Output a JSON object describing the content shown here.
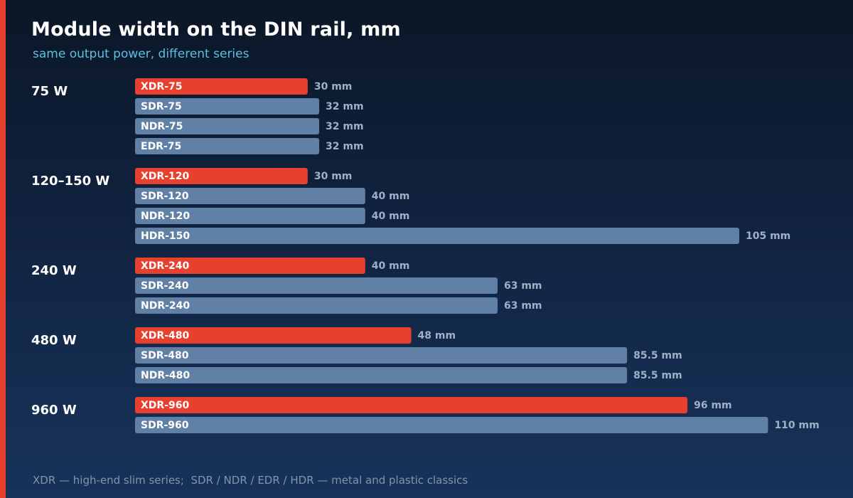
{
  "chart_data": {
    "type": "bar",
    "orientation": "horizontal",
    "title": "Module width on the DIN rail, mm",
    "subtitle": "same output power, different series",
    "footnote": "XDR — high-end slim series;  SDR / NDR / EDR / HDR — metal and plastic classics",
    "unit": "mm",
    "highlight_series": "XDR",
    "colors": {
      "highlight": "#e8402f",
      "standard": "#6180a6",
      "value_text": "#9fb0c7",
      "subtitle": "#5cc0e0"
    },
    "groups": [
      {
        "label": "75 W",
        "bars": [
          {
            "name": "XDR-75",
            "value": 30,
            "value_label": "30 mm",
            "highlight": true
          },
          {
            "name": "SDR-75",
            "value": 32,
            "value_label": "32 mm",
            "highlight": false
          },
          {
            "name": "NDR-75",
            "value": 32,
            "value_label": "32 mm",
            "highlight": false
          },
          {
            "name": "EDR-75",
            "value": 32,
            "value_label": "32 mm",
            "highlight": false
          }
        ]
      },
      {
        "label": "120–150 W",
        "bars": [
          {
            "name": "XDR-120",
            "value": 30,
            "value_label": "30 mm",
            "highlight": true
          },
          {
            "name": "SDR-120",
            "value": 40,
            "value_label": "40 mm",
            "highlight": false
          },
          {
            "name": "NDR-120",
            "value": 40,
            "value_label": "40 mm",
            "highlight": false
          },
          {
            "name": "HDR-150",
            "value": 105,
            "value_label": "105 mm",
            "highlight": false
          }
        ]
      },
      {
        "label": "240 W",
        "bars": [
          {
            "name": "XDR-240",
            "value": 40,
            "value_label": "40 mm",
            "highlight": true
          },
          {
            "name": "SDR-240",
            "value": 63,
            "value_label": "63 mm",
            "highlight": false
          },
          {
            "name": "NDR-240",
            "value": 63,
            "value_label": "63 mm",
            "highlight": false
          }
        ]
      },
      {
        "label": "480 W",
        "bars": [
          {
            "name": "XDR-480",
            "value": 48,
            "value_label": "48 mm",
            "highlight": true
          },
          {
            "name": "SDR-480",
            "value": 85.5,
            "value_label": "85.5 mm",
            "highlight": false
          },
          {
            "name": "NDR-480",
            "value": 85.5,
            "value_label": "85.5 mm",
            "highlight": false
          }
        ]
      },
      {
        "label": "960 W",
        "bars": [
          {
            "name": "XDR-960",
            "value": 96,
            "value_label": "96 mm",
            "highlight": true
          },
          {
            "name": "SDR-960",
            "value": 110,
            "value_label": "110 mm",
            "highlight": false
          }
        ]
      }
    ]
  }
}
